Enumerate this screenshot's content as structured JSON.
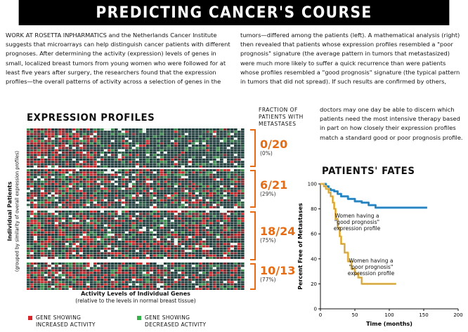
{
  "title": "PREDICTING CANCER'S COURSE",
  "article": {
    "col1": "WORK AT ROSETTA INPHARMATICS and the Netherlands Cancer Institute suggests that microarrays can help distinguish cancer patients with different prognoses. After determining the activity (expression) levels of genes in small, localized breast tumors from young women who were followed for at least five years after surgery, the researchers found that the expression profiles—the overall patterns of activity across a selection of genes in the",
    "col2": "tumors—differed among the patients (left). A mathematical analysis (right) then revealed that patients whose expression profiles resembled a \"poor prognosis\" signature (the average pattern in tumors that metastasized) were much more likely to suffer a quick recurrence than were patients whose profiles resembled a \"good prognosis\" signature (the typical pattern in tumors that did not spread). If such results are confirmed by others,",
    "col3": "doctors may one day be able to discern which patients need the most intensive therapy based in part on how closely their expression profiles match a standard good or poor prognosis profile."
  },
  "expression": {
    "heading": "EXPRESSION PROFILES",
    "fraction_heading": "FRACTION OF PATIENTS WITH METASTASES",
    "groups": [
      {
        "fraction": "0/20",
        "percent": "(0%)"
      },
      {
        "fraction": "6/21",
        "percent": "(29%)"
      },
      {
        "fraction": "18/24",
        "percent": "(75%)"
      },
      {
        "fraction": "10/13",
        "percent": "(77%)"
      }
    ],
    "y_label_main": "Individual Patients",
    "y_label_sub": "(grouped by similarity of overall expression profiles)",
    "x_label_main": "Activity Levels of Individual Genes",
    "x_label_sub": "(relative to the levels in normal breast tissue)",
    "legend": [
      {
        "line1": "GENE SHOWING",
        "line2": "INCREASED ACTIVITY",
        "color": "#d8262b"
      },
      {
        "line1": "GENE SHOWING",
        "line2": "DECREASED ACTIVITY",
        "color": "#35b24a"
      }
    ]
  },
  "chart_data": {
    "type": "line",
    "title": "PATIENTS' FATES",
    "xlabel": "Time (months)",
    "ylabel": "Percent Free of Metastases",
    "xlim": [
      0,
      200
    ],
    "ylim": [
      0,
      100
    ],
    "xticks": [
      0,
      50,
      100,
      150,
      200
    ],
    "yticks": [
      0,
      20,
      40,
      60,
      80,
      100
    ],
    "series": [
      {
        "name": "Women having a \"good prognosis\" expression profile",
        "label_lines": [
          "Women having a",
          "\"good prognosis\"",
          "expression profile"
        ],
        "color": "#2f94d6",
        "x": [
          0,
          5,
          8,
          12,
          15,
          20,
          25,
          30,
          40,
          50,
          60,
          70,
          80,
          100,
          120,
          140,
          155
        ],
        "y": [
          100,
          100,
          98,
          96,
          95,
          94,
          92,
          90,
          88,
          86,
          85,
          83,
          81,
          81,
          81,
          81,
          81
        ]
      },
      {
        "name": "Women having a \"poor prognosis\" expression profile",
        "label_lines": [
          "Women having a",
          "\"poor prognosis\"",
          "expression profile"
        ],
        "color": "#f1c35a",
        "x": [
          0,
          5,
          8,
          12,
          15,
          18,
          20,
          22,
          25,
          28,
          30,
          35,
          40,
          45,
          50,
          55,
          60,
          70,
          80,
          100,
          110
        ],
        "y": [
          100,
          98,
          96,
          93,
          90,
          85,
          80,
          72,
          65,
          58,
          52,
          45,
          38,
          32,
          28,
          25,
          20,
          20,
          20,
          20,
          20
        ]
      }
    ]
  }
}
